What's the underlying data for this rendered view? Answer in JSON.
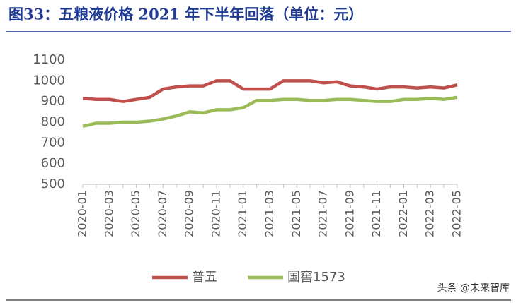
{
  "chart_data": {
    "type": "line",
    "title": "图33：五粮液价格 2021 年下半年回落（单位：元）",
    "categories": [
      "2020-01",
      null,
      "2020-03",
      null,
      "2020-05",
      null,
      "2020-07",
      null,
      "2020-09",
      null,
      "2020-11",
      null,
      "2021-01",
      null,
      "2021-03",
      null,
      "2021-05",
      null,
      "2021-07",
      null,
      "2021-09",
      null,
      "2021-11",
      null,
      "2022-01",
      null,
      "2022-03",
      null,
      "2022-05"
    ],
    "series": [
      {
        "name": "普五",
        "color": "#c0504d",
        "values": [
          915,
          910,
          910,
          900,
          910,
          920,
          960,
          970,
          975,
          975,
          1000,
          1000,
          960,
          960,
          960,
          1000,
          1000,
          1000,
          990,
          995,
          975,
          970,
          960,
          970,
          970,
          965,
          970,
          965,
          980
        ]
      },
      {
        "name": "国窖1573",
        "color": "#9bbb59",
        "values": [
          780,
          795,
          795,
          800,
          800,
          805,
          815,
          830,
          850,
          845,
          860,
          860,
          870,
          905,
          905,
          910,
          910,
          905,
          905,
          910,
          910,
          905,
          900,
          900,
          910,
          910,
          915,
          910,
          920
        ]
      }
    ],
    "ylim": [
      500,
      1100
    ],
    "yticks": [
      500,
      600,
      700,
      800,
      900,
      1000,
      1100
    ],
    "legend": "bottom"
  },
  "watermark": "头条 @未来智库"
}
